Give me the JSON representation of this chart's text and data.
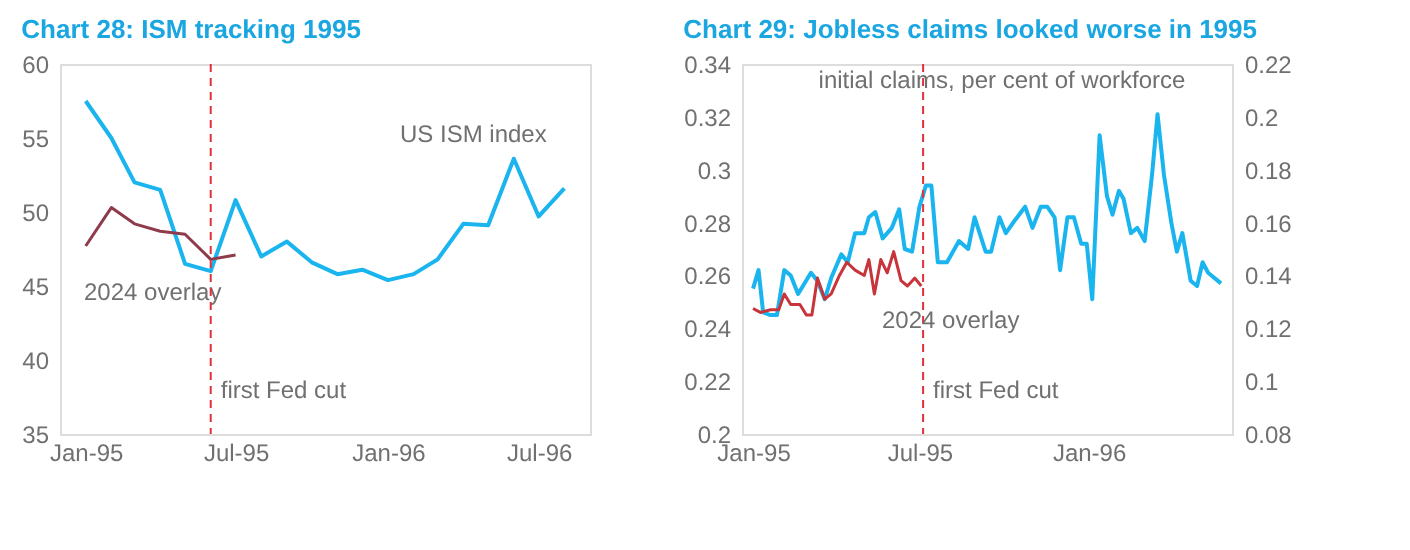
{
  "chart_data": [
    {
      "type": "line",
      "title": "Chart 28: ISM tracking 1995",
      "x": [
        "1995-01",
        "1995-02",
        "1995-03",
        "1995-04",
        "1995-05",
        "1995-06",
        "1995-07",
        "1995-08",
        "1995-09",
        "1995-10",
        "1995-11",
        "1995-12",
        "1996-01",
        "1996-02",
        "1996-03",
        "1996-04",
        "1996-05",
        "1996-06",
        "1996-07",
        "1996-08"
      ],
      "series": [
        {
          "name": "US ISM index",
          "color": "#1ab4ee",
          "values": [
            57.5,
            55,
            52,
            51.5,
            46.5,
            46,
            50.8,
            47,
            48,
            46.6,
            45.8,
            46.1,
            45.4,
            45.8,
            46.8,
            49.2,
            49.1,
            53.6,
            49.7,
            51.6
          ]
        },
        {
          "name": "2024 overlay",
          "color": "#8e3b4b",
          "x": [
            "1995-01",
            "1995-02",
            "1995-03",
            "1995-04",
            "1995-05",
            "1995-06",
            "1995-07"
          ],
          "values": [
            47.7,
            50.3,
            49.2,
            48.7,
            48.5,
            46.8,
            47.1
          ]
        }
      ],
      "xlim": [
        "1994-12",
        "1996-09"
      ],
      "xticks": [
        {
          "value": "1995-01",
          "label": "Jan-95"
        },
        {
          "value": "1995-07",
          "label": "Jul-95"
        },
        {
          "value": "1996-01",
          "label": "Jan-96"
        },
        {
          "value": "1996-07",
          "label": "Jul-96"
        }
      ],
      "ylim": [
        35,
        60
      ],
      "yticks": [
        35,
        40,
        45,
        50,
        55,
        60
      ],
      "ref_lines": [
        {
          "axis": "x",
          "value": "1995-06-01",
          "label": "first Fed cut",
          "color": "#e0303a",
          "line_style": "dashed"
        }
      ],
      "grid": false,
      "marker": "none",
      "line_style": "solid"
    },
    {
      "type": "line",
      "title": "Chart 29: Jobless claims looked worse in 1995",
      "annotations": [
        "initial claims, per cent of workforce"
      ],
      "series": [
        {
          "color": "#1ab4ee",
          "x": [
            "1995-01-01",
            "1995-01-07",
            "1995-01-12",
            "1995-01-20",
            "1995-01-27",
            "1995-02-04",
            "1995-02-11",
            "1995-02-19",
            "1995-03-05",
            "1995-03-12",
            "1995-03-20",
            "1995-03-27",
            "1995-04-07",
            "1995-04-14",
            "1995-04-22",
            "1995-05-02",
            "1995-05-07",
            "1995-05-14",
            "1995-05-22",
            "1995-06-01",
            "1995-06-09",
            "1995-06-15",
            "1995-06-23",
            "1995-07-01",
            "1995-07-08",
            "1995-07-14",
            "1995-07-21",
            "1995-07-31",
            "1995-08-13",
            "1995-08-23",
            "1995-08-30",
            "1995-09-11",
            "1995-09-17",
            "1995-09-26",
            "1995-10-03",
            "1995-10-11",
            "1995-10-24",
            "1995-11-01",
            "1995-11-10",
            "1995-11-17",
            "1995-11-25",
            "1995-12-01",
            "1995-12-09",
            "1995-12-16",
            "1995-12-24",
            "1995-12-30",
            "1996-01-05",
            "1996-01-13",
            "1996-01-21",
            "1996-01-27",
            "1996-02-03",
            "1996-02-08",
            "1996-02-16",
            "1996-02-23",
            "1996-03-02",
            "1996-03-10",
            "1996-03-16",
            "1996-03-23",
            "1996-03-31",
            "1996-04-06",
            "1996-04-12",
            "1996-04-21",
            "1996-04-28",
            "1996-05-04",
            "1996-05-10",
            "1996-05-24"
          ],
          "values": [
            0.255,
            0.262,
            0.246,
            0.245,
            0.245,
            0.262,
            0.26,
            0.253,
            0.261,
            0.258,
            0.251,
            0.259,
            0.268,
            0.265,
            0.276,
            0.276,
            0.282,
            0.284,
            0.274,
            0.278,
            0.285,
            0.27,
            0.269,
            0.286,
            0.294,
            0.294,
            0.265,
            0.265,
            0.273,
            0.27,
            0.282,
            0.269,
            0.269,
            0.282,
            0.276,
            0.28,
            0.286,
            0.278,
            0.286,
            0.286,
            0.282,
            0.262,
            0.282,
            0.282,
            0.272,
            0.272,
            0.251,
            0.313,
            0.29,
            0.283,
            0.292,
            0.289,
            0.276,
            0.278,
            0.273,
            0.298,
            0.321,
            0.298,
            0.28,
            0.269,
            0.276,
            0.258,
            0.256,
            0.265,
            0.261,
            0.257
          ]
        },
        {
          "name": "2024 overlay",
          "color": "#c8343a",
          "axis": "y2",
          "x": [
            "1995-01-01",
            "1995-01-09",
            "1995-01-20",
            "1995-01-29",
            "1995-02-04",
            "1995-02-11",
            "1995-02-21",
            "1995-02-28",
            "1995-03-06",
            "1995-03-12",
            "1995-03-20",
            "1995-03-27",
            "1995-04-05",
            "1995-04-13",
            "1995-04-22",
            "1995-05-02",
            "1995-05-07",
            "1995-05-13",
            "1995-05-20",
            "1995-05-27",
            "1995-06-03",
            "1995-06-11",
            "1995-06-18",
            "1995-06-26",
            "1995-07-03"
          ],
          "values": [
            0.1275,
            0.126,
            0.127,
            0.127,
            0.133,
            0.129,
            0.129,
            0.125,
            0.125,
            0.139,
            0.131,
            0.133,
            0.14,
            0.145,
            0.142,
            0.14,
            0.146,
            0.133,
            0.146,
            0.141,
            0.149,
            0.138,
            0.136,
            0.139,
            0.136
          ]
        }
      ],
      "xlim": [
        "1994-12-20",
        "1996-06-05"
      ],
      "xticks": [
        {
          "value": "1995-01-01",
          "label": "Jan-95"
        },
        {
          "value": "1995-07-01",
          "label": "Jul-95"
        },
        {
          "value": "1996-01-01",
          "label": "Jan-96"
        }
      ],
      "ylim": [
        0.2,
        0.34
      ],
      "yticks": [
        0.2,
        0.22,
        0.24,
        0.26,
        0.28,
        0.3,
        0.32,
        0.34
      ],
      "y2lim": [
        0.08,
        0.22
      ],
      "y2ticks": [
        0.08,
        0.1,
        0.12,
        0.14,
        0.16,
        0.18,
        0.2,
        0.22
      ],
      "ref_lines": [
        {
          "axis": "x",
          "value": "1995-07-05",
          "label": "first Fed cut",
          "color": "#e0303a",
          "line_style": "dashed"
        }
      ],
      "grid": false,
      "marker": "none",
      "line_style": "solid"
    }
  ]
}
